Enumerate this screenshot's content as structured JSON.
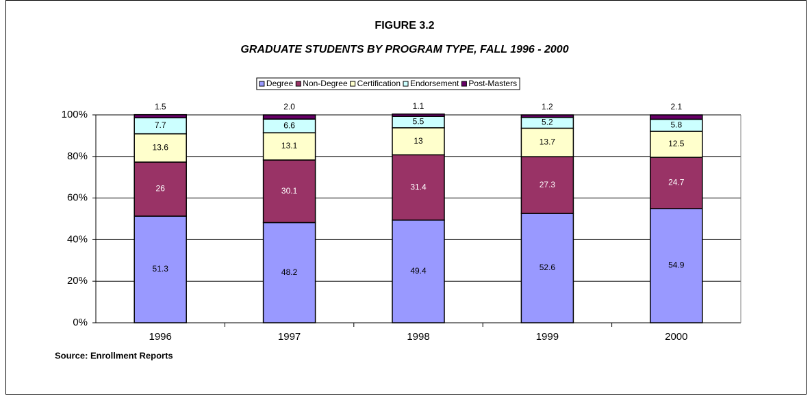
{
  "chart_data": {
    "type": "stacked_bar",
    "title": "FIGURE 3.2",
    "subtitle": "GRADUATE STUDENTS BY PROGRAM TYPE, FALL 1996 - 2000",
    "source": "Source: Enrollment Reports",
    "categories": [
      "1996",
      "1997",
      "1998",
      "1999",
      "2000"
    ],
    "series": [
      {
        "name": "Degree",
        "color": "#9999ff",
        "values": [
          51.3,
          48.2,
          49.4,
          52.6,
          54.9
        ]
      },
      {
        "name": "Non-Degree",
        "color": "#993366",
        "values": [
          26,
          30.1,
          31.4,
          27.3,
          24.7
        ]
      },
      {
        "name": "Certification",
        "color": "#ffffcc",
        "values": [
          13.6,
          13.1,
          13,
          13.7,
          12.5
        ]
      },
      {
        "name": "Endorsement",
        "color": "#ccffff",
        "values": [
          7.7,
          6.6,
          5.5,
          5.2,
          5.8
        ]
      },
      {
        "name": "Post-Masters",
        "color": "#660066",
        "values": [
          1.5,
          2.0,
          1.1,
          1.2,
          2.1
        ],
        "value_labels": [
          "1.5",
          "2.0",
          "1.1",
          "1.2",
          "2.1"
        ]
      }
    ],
    "ylim": [
      0,
      100
    ],
    "yticks": [
      {
        "value": 0,
        "label": "0%"
      },
      {
        "value": 20,
        "label": "20%"
      },
      {
        "value": 40,
        "label": "40%"
      },
      {
        "value": 60,
        "label": "60%"
      },
      {
        "value": 80,
        "label": "80%"
      },
      {
        "value": 100,
        "label": "100%"
      }
    ],
    "grid": true,
    "legend": "top"
  }
}
